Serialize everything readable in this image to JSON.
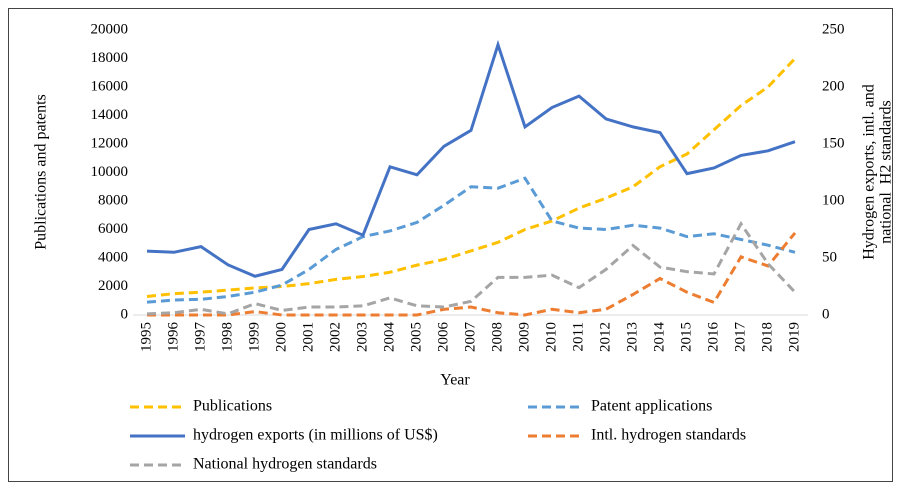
{
  "chart_data": {
    "type": "line",
    "xlabel": "Year",
    "ylabel": "Publications and patents",
    "y2label": [
      "Hydrogen exports, intl. and",
      "national  H2 standards"
    ],
    "categories": [
      "1995",
      "1996",
      "1997",
      "1998",
      "1999",
      "2000",
      "2001",
      "2002",
      "2003",
      "2004",
      "2005",
      "2006",
      "2007",
      "2008",
      "2009",
      "2010",
      "2011",
      "2012",
      "2013",
      "2014",
      "2015",
      "2016",
      "2017",
      "2018",
      "2019"
    ],
    "ylim": [
      0,
      20000
    ],
    "yticks": [
      0,
      2000,
      4000,
      6000,
      8000,
      10000,
      12000,
      14000,
      16000,
      18000,
      20000
    ],
    "y2lim": [
      0,
      250
    ],
    "y2ticks": [
      0,
      50,
      100,
      150,
      200,
      250
    ],
    "series": [
      {
        "name": "Publications",
        "color": "#FFC000",
        "dashed": true,
        "values": [
          1300,
          1500,
          1600,
          1750,
          1900,
          2000,
          2200,
          2500,
          2700,
          3000,
          3500,
          3900,
          4500,
          5100,
          6000,
          6600,
          7500,
          8200,
          9000,
          10400,
          11300,
          13000,
          14700,
          16000,
          18000
        ]
      },
      {
        "name": "Patent applications",
        "color": "#5B9BD5",
        "dashed": true,
        "values": [
          900,
          1050,
          1100,
          1300,
          1600,
          2100,
          3200,
          4600,
          5500,
          5900,
          6500,
          7700,
          9000,
          8900,
          9600,
          6600,
          6100,
          6000,
          6300,
          6100,
          5500,
          5700,
          5300,
          4900,
          4400
        ]
      },
      {
        "name": "hydrogen exports (in millions of US$)",
        "color": "#4472C4",
        "dashed": false,
        "axis": "y2",
        "values": [
          56,
          55,
          60,
          44,
          34,
          40,
          75,
          80,
          70,
          130,
          123,
          148,
          162,
          237,
          165,
          182,
          192,
          172,
          165,
          160,
          124,
          129,
          140,
          144,
          152
        ]
      },
      {
        "name": "Intl. hydrogen standards",
        "color": "#ED7D31",
        "dashed": true,
        "axis": "y2",
        "values": [
          0,
          0,
          0,
          0,
          3,
          0,
          0,
          0,
          0,
          0,
          0,
          5,
          7,
          2,
          0,
          5,
          2,
          5,
          18,
          32,
          20,
          11,
          51,
          43,
          72
        ]
      },
      {
        "name": "National hydrogen standards",
        "color": "#A5A5A5",
        "dashed": true,
        "axis": "y2",
        "values": [
          1,
          2,
          5,
          1,
          10,
          4,
          7,
          7,
          8,
          15,
          8,
          7,
          12,
          33,
          33,
          35,
          24,
          40,
          61,
          42,
          38,
          36,
          80,
          45,
          20
        ]
      }
    ]
  }
}
